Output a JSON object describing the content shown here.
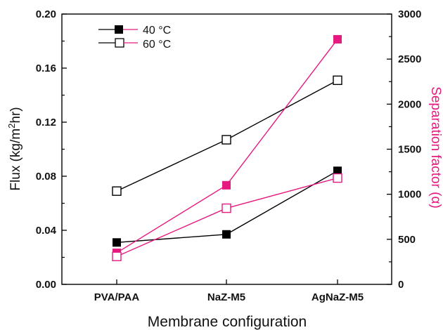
{
  "chart_data": {
    "type": "line",
    "categories": [
      "PVA/PAA",
      "NaZ-M5",
      "AgNaZ-M5"
    ],
    "xlabel": "Membrane configuration",
    "ylabel": "Flux (kg/m²hr)",
    "ylabel_parts": {
      "pre": "Flux (kg/m",
      "sup": "2",
      "post": "hr)"
    },
    "y2label": "Separation factor (α)",
    "ylim": [
      0,
      0.2
    ],
    "yticks": [
      "0.00",
      "0.04",
      "0.08",
      "0.12",
      "0.16",
      "0.20"
    ],
    "y2lim": [
      0,
      3000
    ],
    "y2ticks": [
      "0",
      "500",
      "1000",
      "1500",
      "2000",
      "2500",
      "3000"
    ],
    "legend_position": "top-left",
    "legend": [
      {
        "label": "40 °C",
        "marker": "filled-square"
      },
      {
        "label": "60 °C",
        "marker": "open-square"
      }
    ],
    "series": [
      {
        "name": "40 °C",
        "quantity": "flux",
        "axis": "left",
        "color": "#000000",
        "marker": "filled-square",
        "values": [
          0.031,
          0.037,
          0.084
        ]
      },
      {
        "name": "60 °C",
        "quantity": "flux",
        "axis": "left",
        "color": "#000000",
        "marker": "open-square",
        "values": [
          0.069,
          0.107,
          0.151
        ]
      },
      {
        "name": "40 °C",
        "quantity": "separation factor",
        "axis": "right",
        "color": "#e6197f",
        "marker": "filled-square",
        "values": [
          350,
          1100,
          2720
        ]
      },
      {
        "name": "60 °C",
        "quantity": "separation factor",
        "axis": "right",
        "color": "#e6197f",
        "marker": "open-square",
        "values": [
          310,
          845,
          1180
        ]
      }
    ]
  }
}
